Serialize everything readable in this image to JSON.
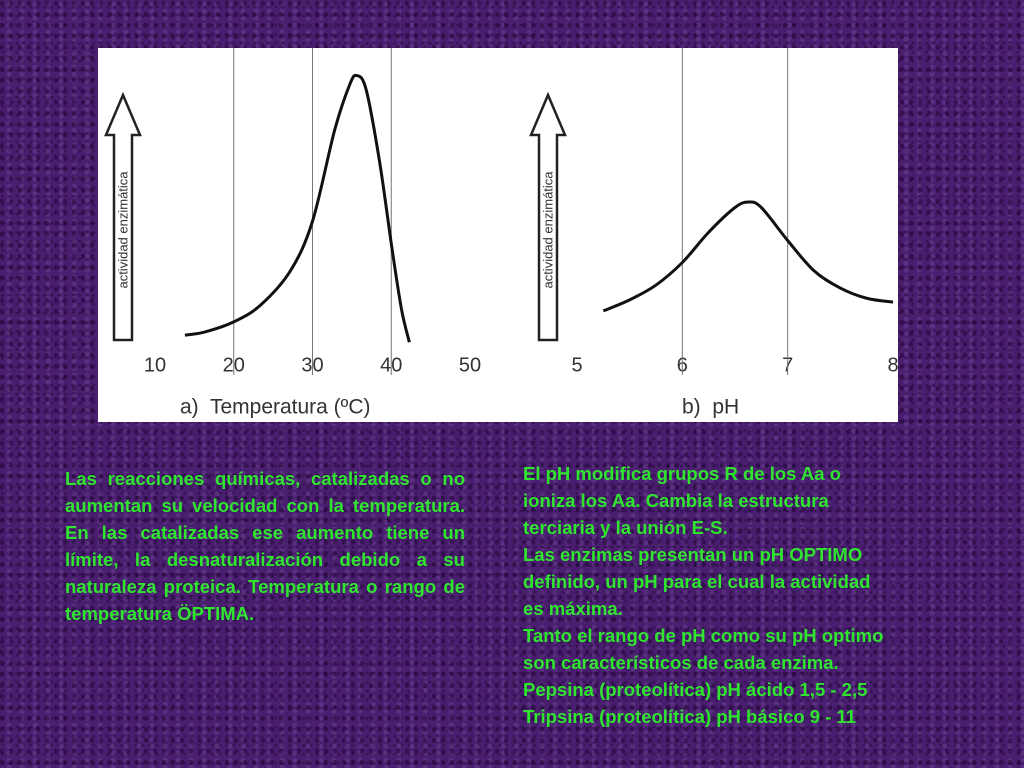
{
  "chart_data": [
    {
      "type": "line",
      "xlabel": "a)  Temperatura (ºC)",
      "ylabel": "actividad enzimática",
      "x": [
        13.8,
        16.3,
        20,
        23.4,
        27.2,
        30,
        32.8,
        34.7,
        35.6,
        36.8,
        38.5,
        40.1,
        41.3,
        42.3
      ],
      "values": [
        3.6,
        4.7,
        8.4,
        14.5,
        27,
        45,
        78,
        94.5,
        98,
        93,
        67,
        35,
        13,
        1
      ],
      "color": "#111111",
      "xlim": [
        10,
        50
      ],
      "xticks": [
        10,
        20,
        30,
        40,
        50
      ],
      "ylim": [
        0,
        100
      ],
      "grid": true
    },
    {
      "type": "line",
      "xlabel": "b)  pH",
      "ylabel": "actividad enzimática",
      "x": [
        5.25,
        5.5,
        5.75,
        6.0,
        6.25,
        6.5,
        6.63,
        6.75,
        7.0,
        7.25,
        7.5,
        7.75,
        8.0
      ],
      "values": [
        12.4,
        16.4,
        21.8,
        30,
        41,
        50,
        52,
        50,
        38,
        27,
        20.7,
        17,
        15.6
      ],
      "color": "#111111",
      "xlim": [
        5,
        8
      ],
      "xticks": [
        5,
        6,
        7,
        8
      ],
      "ylim": [
        0,
        100
      ],
      "grid": true
    }
  ],
  "text_left": "Las reacciones químicas, catalizadas o no aumentan su velocidad con la temperatura. En las catalizadas ese aumento tiene un límite, la desnaturalización debido a su naturaleza proteica. Temperatura o rango de temperatura ÖPTIMA.",
  "text_right": [
    "El pH modifica grupos R de los Aa o",
    "ioniza los Aa. Cambia la estructura",
    "terciaria y la unión E-S.",
    "Las enzimas presentan un pH OPTIMO",
    "definido, un pH para el cual la actividad",
    "es máxima.",
    "Tanto el rango de pH como su pH optimo",
    "son característicos de cada enzima.",
    "Pepsina (proteolítica) pH ácido 1,5 - 2,5",
    "Tripsina (proteolítica) pH básico 9 - 11"
  ]
}
